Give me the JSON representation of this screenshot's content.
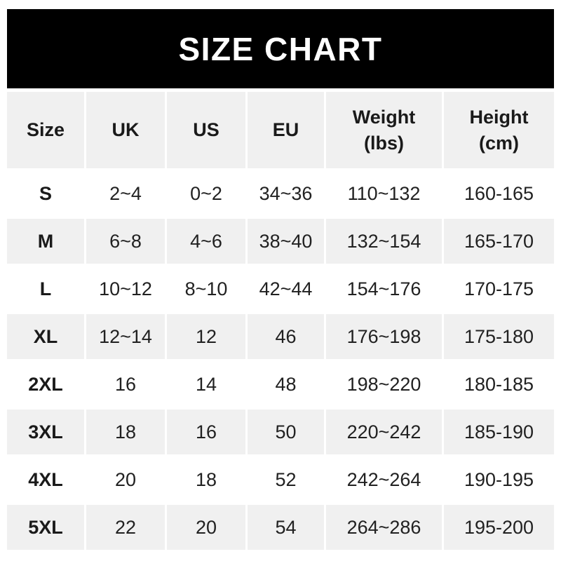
{
  "banner": {
    "title": "SIZE CHART"
  },
  "colors": {
    "banner_bg": "#000000",
    "banner_text": "#ffffff",
    "row_alt_bg": "#f0f0f0",
    "row_bg": "#ffffff",
    "text": "#212121"
  },
  "chart_data": {
    "type": "table",
    "title": "SIZE CHART",
    "columns": [
      "Size",
      "UK",
      "US",
      "EU",
      "Weight (lbs)",
      "Height (cm)"
    ],
    "header_lines": [
      {
        "l1": "Size",
        "l2": ""
      },
      {
        "l1": "UK",
        "l2": ""
      },
      {
        "l1": "US",
        "l2": ""
      },
      {
        "l1": "EU",
        "l2": ""
      },
      {
        "l1": "Weight",
        "l2": "(lbs)"
      },
      {
        "l1": "Height",
        "l2": "(cm)"
      }
    ],
    "rows": [
      [
        "S",
        "2~4",
        "0~2",
        "34~36",
        "110~132",
        "160-165"
      ],
      [
        "M",
        "6~8",
        "4~6",
        "38~40",
        "132~154",
        "165-170"
      ],
      [
        "L",
        "10~12",
        "8~10",
        "42~44",
        "154~176",
        "170-175"
      ],
      [
        "XL",
        "12~14",
        "12",
        "46",
        "176~198",
        "175-180"
      ],
      [
        "2XL",
        "16",
        "14",
        "48",
        "198~220",
        "180-185"
      ],
      [
        "3XL",
        "18",
        "16",
        "50",
        "220~242",
        "185-190"
      ],
      [
        "4XL",
        "20",
        "18",
        "52",
        "242~264",
        "190-195"
      ],
      [
        "5XL",
        "22",
        "20",
        "54",
        "264~286",
        "195-200"
      ]
    ]
  }
}
